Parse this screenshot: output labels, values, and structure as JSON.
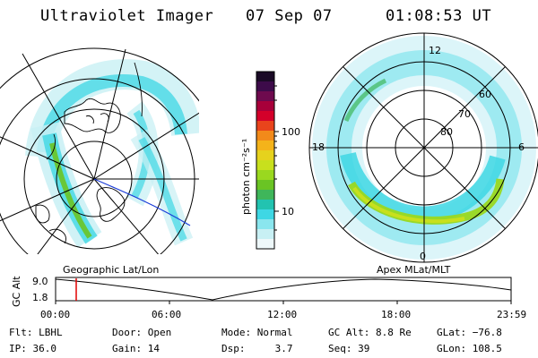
{
  "header": {
    "title": "Ultraviolet Imager",
    "date": "07 Sep 07",
    "time": "01:08:53 UT"
  },
  "geo_panel": {
    "caption": "Geographic Lat/Lon"
  },
  "apex_panel": {
    "caption": "Apex MLat/MLT",
    "mlt_labels": [
      "12",
      "18",
      "6",
      "0"
    ],
    "lat_labels": [
      "60",
      "70",
      "80"
    ]
  },
  "colorbar": {
    "unit_label": "photon cm⁻²s⁻¹",
    "tick_labels": [
      "100",
      "10"
    ],
    "colors": [
      "#1a0a26",
      "#3d0b4a",
      "#6e0a4e",
      "#a8003a",
      "#d4002a",
      "#e9441c",
      "#f28a1a",
      "#f4b31a",
      "#e6d21d",
      "#c8e01d",
      "#9ad81f",
      "#6ac424",
      "#3fb65a",
      "#22c3b0",
      "#3ed7e4",
      "#8ae6ee",
      "#c8f0f4",
      "#eef8fa"
    ]
  },
  "altitude_plot": {
    "ylabel": "GC Alt",
    "y_ticks": [
      "9.0",
      "1.8"
    ],
    "x_ticks": [
      "00:00",
      "06:00",
      "12:00",
      "18:00",
      "23:59"
    ],
    "current_marker_color": "#e00000"
  },
  "status": {
    "rows": [
      [
        "Flt: LBHL",
        "Door: Open",
        "Mode: Normal",
        "GC Alt: 8.8 Re",
        "GLat: −76.8"
      ],
      [
        "IP: 36.0",
        "Gain: 14",
        "Dsp:     3.7",
        "Seq: 39",
        "GLon: 108.5"
      ]
    ]
  }
}
